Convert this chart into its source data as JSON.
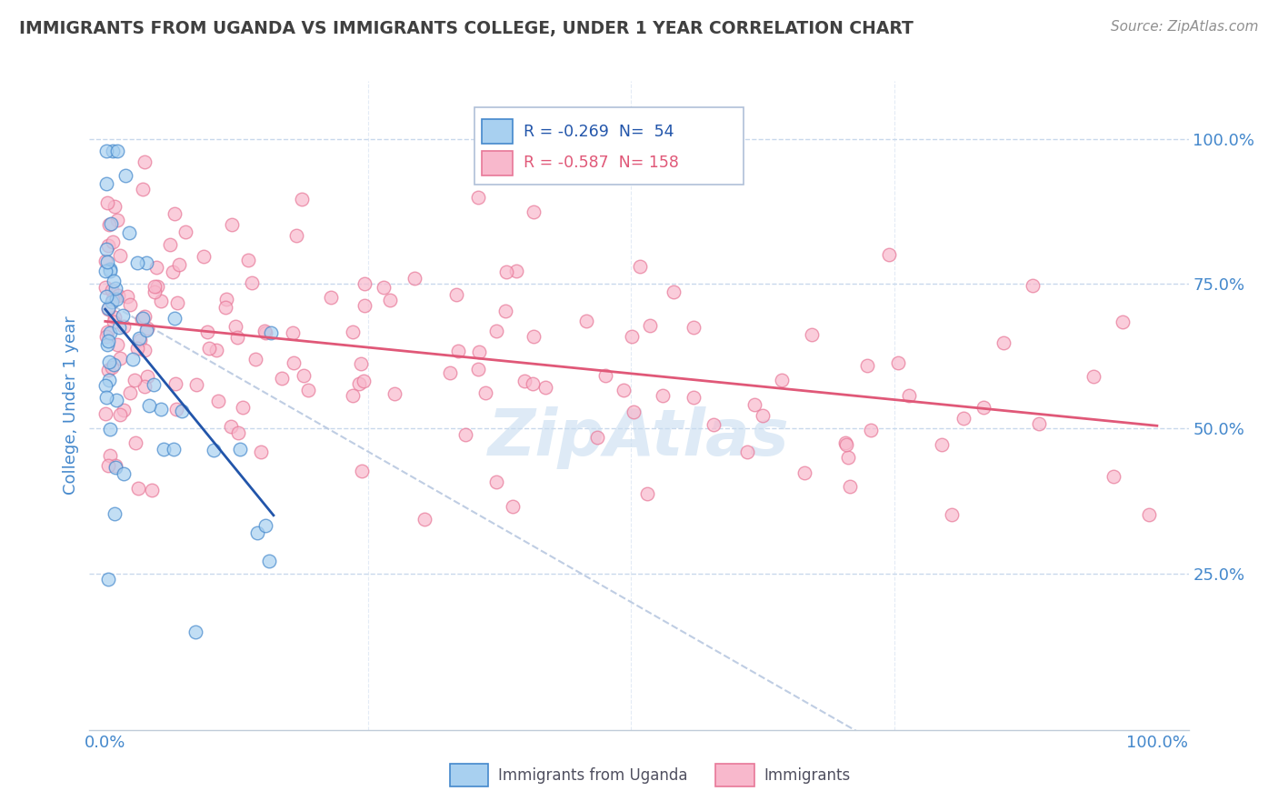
{
  "title": "IMMIGRANTS FROM UGANDA VS IMMIGRANTS COLLEGE, UNDER 1 YEAR CORRELATION CHART",
  "source": "Source: ZipAtlas.com",
  "ylabel": "College, Under 1 year",
  "legend1_r": "-0.269",
  "legend1_n": "54",
  "legend2_r": "-0.587",
  "legend2_n": "158",
  "blue_color": "#a8d0f0",
  "blue_edge_color": "#4488cc",
  "blue_line_color": "#2255aa",
  "pink_color": "#f8b8cc",
  "pink_edge_color": "#e87898",
  "pink_line_color": "#e05878",
  "background_color": "#ffffff",
  "grid_color": "#c8d8ec",
  "title_color": "#404040",
  "source_color": "#909090",
  "axis_label_color": "#4488cc",
  "dash_color": "#b8c8e0",
  "watermark_color": "#c8ddf0"
}
